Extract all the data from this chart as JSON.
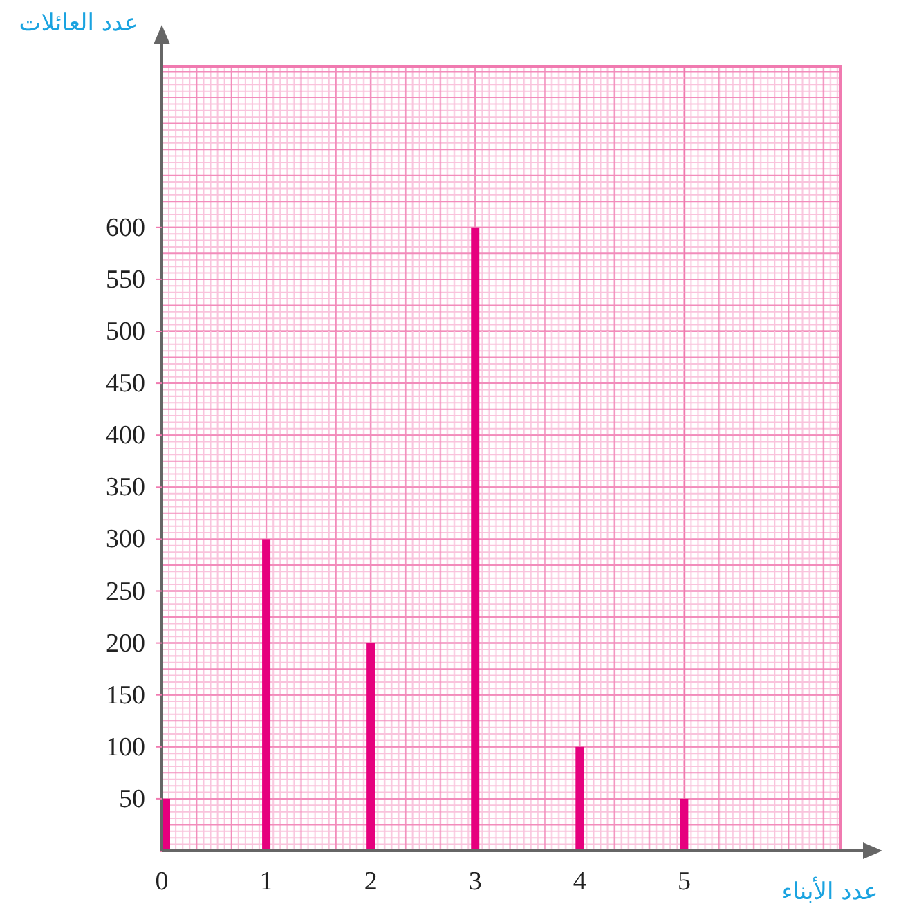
{
  "chart_data": {
    "type": "bar",
    "xlabel": "عدد الأبناء",
    "ylabel": "عدد العائلات",
    "x": [
      0,
      1,
      2,
      3,
      4,
      5
    ],
    "values": [
      50,
      300,
      200,
      600,
      100,
      50
    ],
    "color": "#e6007e",
    "xlim": [
      0,
      6.5
    ],
    "ylim": [
      0,
      755
    ],
    "xticks": [
      0,
      1,
      2,
      3,
      4,
      5
    ],
    "yticks": [
      50,
      100,
      150,
      200,
      250,
      300,
      350,
      400,
      450,
      500,
      550,
      600
    ],
    "grid": true
  }
}
